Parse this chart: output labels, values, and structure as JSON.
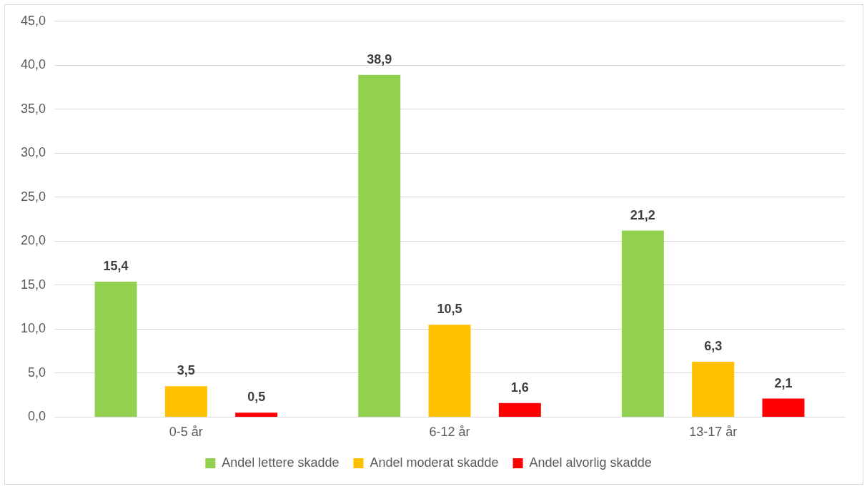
{
  "chart_data": {
    "type": "bar",
    "categories": [
      "0-5 år",
      "6-12 år",
      "13-17 år"
    ],
    "series": [
      {
        "name": "Andel lettere skadde",
        "color": "#92d050",
        "values": [
          15.4,
          38.9,
          21.2
        ],
        "value_labels": [
          "15,4",
          "38,9",
          "21,2"
        ]
      },
      {
        "name": "Andel moderat skadde",
        "color": "#ffc000",
        "values": [
          3.5,
          10.5,
          6.3
        ],
        "value_labels": [
          "3,5",
          "10,5",
          "6,3"
        ]
      },
      {
        "name": "Andel alvorlig skadde",
        "color": "#ff0000",
        "values": [
          0.5,
          1.6,
          2.1
        ],
        "value_labels": [
          "0,5",
          "1,6",
          "2,1"
        ]
      }
    ],
    "ylim": [
      0,
      45
    ],
    "yticks": [
      {
        "value": 0,
        "label": "0,0"
      },
      {
        "value": 5,
        "label": "5,0"
      },
      {
        "value": 10,
        "label": "10,0"
      },
      {
        "value": 15,
        "label": "15,0"
      },
      {
        "value": 20,
        "label": "20,0"
      },
      {
        "value": 25,
        "label": "25,0"
      },
      {
        "value": 30,
        "label": "30,0"
      },
      {
        "value": 35,
        "label": "35,0"
      },
      {
        "value": 40,
        "label": "40,0"
      },
      {
        "value": 45,
        "label": "45,0"
      }
    ],
    "grid": "y",
    "legend": "bottom"
  }
}
